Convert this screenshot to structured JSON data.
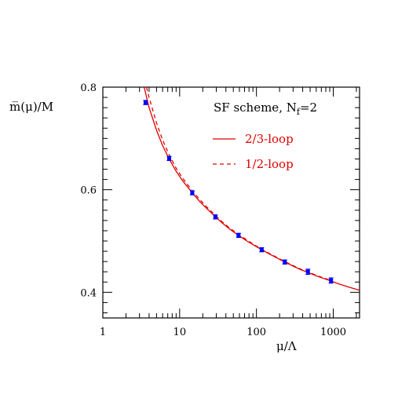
{
  "chart_data": {
    "type": "scatter",
    "xscale": "log",
    "xlim": [
      1,
      2200
    ],
    "ylim": [
      0.35,
      0.8
    ],
    "x_ticks": [
      1,
      10,
      100,
      1000
    ],
    "x_tick_labels": [
      "1",
      "10",
      "100",
      "1000"
    ],
    "y_ticks": [
      0.4,
      0.6,
      0.8
    ],
    "y_tick_labels": [
      "0.4",
      "0.6",
      "0.8"
    ],
    "xlabel": "μ/Λ",
    "ylabel": "m̅(μ)/M",
    "grid": false,
    "legend": {
      "placement": "top-right",
      "title_main": "SF scheme, N",
      "title_sub": "f",
      "title_tail": "=2"
    },
    "series": [
      {
        "name": "2/3-loop",
        "style": "solid",
        "color": "#e00000",
        "x": [
          3.45,
          4,
          5,
          6,
          7.3,
          9,
          11,
          14.6,
          18,
          22,
          29.2,
          36,
          45,
          58.4,
          75,
          95,
          117,
          150,
          190,
          234,
          300,
          380,
          468,
          600,
          750,
          936,
          1200,
          1600,
          2200
        ],
        "y": [
          0.8,
          0.76,
          0.716,
          0.686,
          0.66,
          0.636,
          0.617,
          0.594,
          0.578,
          0.565,
          0.547,
          0.535,
          0.523,
          0.511,
          0.5,
          0.491,
          0.483,
          0.474,
          0.466,
          0.459,
          0.451,
          0.444,
          0.439,
          0.432,
          0.427,
          0.422,
          0.416,
          0.41,
          0.404
        ]
      },
      {
        "name": "1/2-loop",
        "style": "dashed",
        "color": "#e00000",
        "x": [
          3.7,
          4,
          5,
          6,
          7.3,
          9,
          11,
          14.6,
          18,
          22,
          29.2,
          36,
          45,
          58.4,
          75,
          95,
          117,
          150,
          190,
          234,
          300,
          380,
          468,
          600,
          750,
          936
        ],
        "y": [
          0.8,
          0.78,
          0.73,
          0.697,
          0.668,
          0.642,
          0.622,
          0.598,
          0.582,
          0.568,
          0.55,
          0.537,
          0.525,
          0.513,
          0.502,
          0.492,
          0.484,
          0.475,
          0.467,
          0.46,
          0.452,
          0.445,
          0.44,
          0.433,
          0.428,
          0.423
        ]
      }
    ],
    "points": {
      "color": "#0000ff",
      "x": [
        3.6,
        7.3,
        14.6,
        29.2,
        58.4,
        117,
        234,
        468,
        936
      ],
      "y": [
        0.77,
        0.661,
        0.594,
        0.547,
        0.511,
        0.483,
        0.459,
        0.44,
        0.423
      ],
      "err": [
        0.004,
        0.004,
        0.004,
        0.004,
        0.004,
        0.004,
        0.004,
        0.005,
        0.005
      ]
    }
  }
}
